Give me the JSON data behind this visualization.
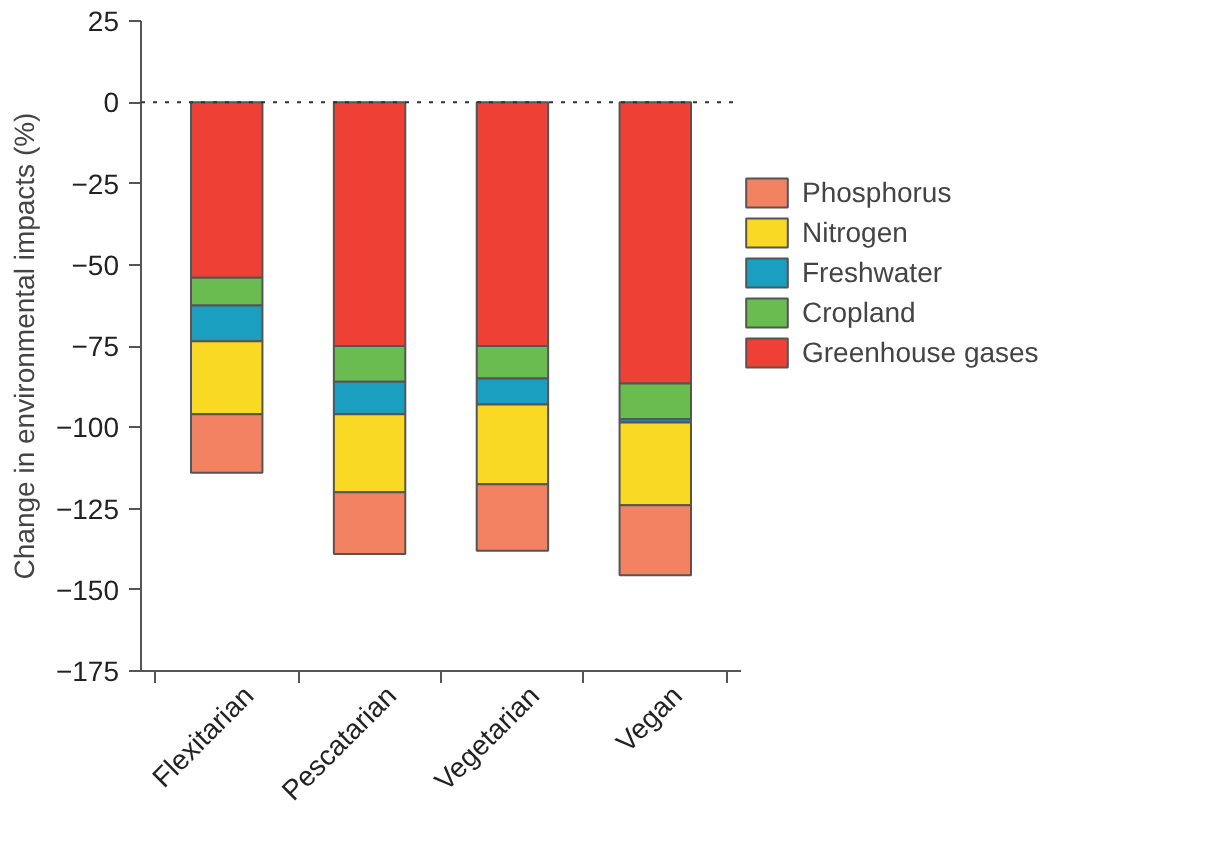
{
  "chart_data": {
    "type": "bar",
    "stacked": true,
    "ylabel": "Change in environmental impacts (%)",
    "categories": [
      "Flexitarian",
      "Pescatarian",
      "Vegetarian",
      "Vegan"
    ],
    "series": [
      {
        "name": "Greenhouse gases",
        "color": "#ee4035",
        "values": [
          -54,
          -75,
          -75,
          -86.5
        ]
      },
      {
        "name": "Cropland",
        "color": "#6abb50",
        "values": [
          -8.5,
          -11,
          -10,
          -11
        ]
      },
      {
        "name": "Freshwater",
        "color": "#1a9fc0",
        "values": [
          -11,
          -10,
          -8,
          -1
        ]
      },
      {
        "name": "Nitrogen",
        "color": "#f9d923",
        "values": [
          -22.5,
          -24,
          -24.5,
          -25.5
        ]
      },
      {
        "name": "Phosphorus",
        "color": "#f38262",
        "values": [
          -18,
          -19,
          -20.5,
          -21.5
        ]
      }
    ],
    "ylim": [
      -175,
      25
    ],
    "yticks": [
      -175,
      -150,
      -125,
      -100,
      -75,
      -50,
      -25,
      0,
      25
    ],
    "ref_lines": [
      {
        "axis": "y",
        "value": 0,
        "line_style": "dotted",
        "color": "#333333"
      }
    ],
    "grid": false,
    "legend": "right"
  }
}
